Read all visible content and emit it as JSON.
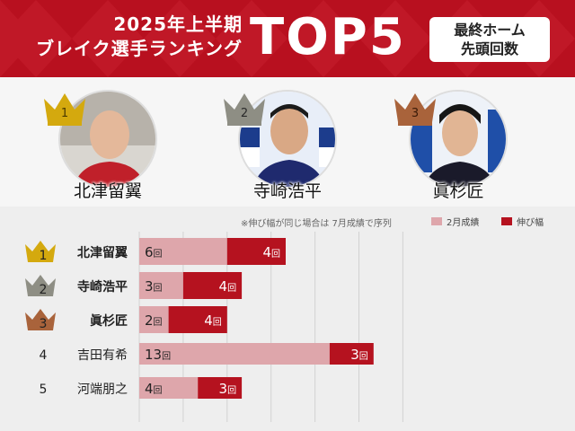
{
  "header": {
    "title_line1": "2025年上半期",
    "title_line2": "ブレイク選手ランキング",
    "title_big": "TOP5",
    "badge_line1": "最終ホーム",
    "badge_line2": "先頭回数"
  },
  "portraits": [
    {
      "rank": "1",
      "name": "北津留翼",
      "crown_color": "#d4a90e"
    },
    {
      "rank": "2",
      "name": "寺崎浩平",
      "crown_color": "#8e8e84"
    },
    {
      "rank": "3",
      "name": "眞杉匠",
      "crown_color": "#a9633b"
    }
  ],
  "note": "※伸び幅が同じ場合は 7月成績で序列",
  "legend": [
    {
      "label": "2月成績",
      "color": "#dea6ab"
    },
    {
      "label": "伸び幅",
      "color": "#b5121f"
    }
  ],
  "unit": "回",
  "chart_data": {
    "type": "bar",
    "orientation": "horizontal",
    "stacked": true,
    "categories": [
      "北津留翼",
      "寺崎浩平",
      "眞杉匠",
      "吉田有希",
      "河端朋之"
    ],
    "ranks": [
      "1",
      "2",
      "3",
      "4",
      "5"
    ],
    "series": [
      {
        "name": "2月成績",
        "values": [
          6,
          3,
          2,
          13,
          4
        ],
        "color": "#dea6ab"
      },
      {
        "name": "伸び幅",
        "values": [
          4,
          4,
          4,
          3,
          3
        ],
        "color": "#b5121f"
      }
    ],
    "xlim": [
      0,
      18
    ],
    "grid": true,
    "legend_position": "top-right"
  }
}
